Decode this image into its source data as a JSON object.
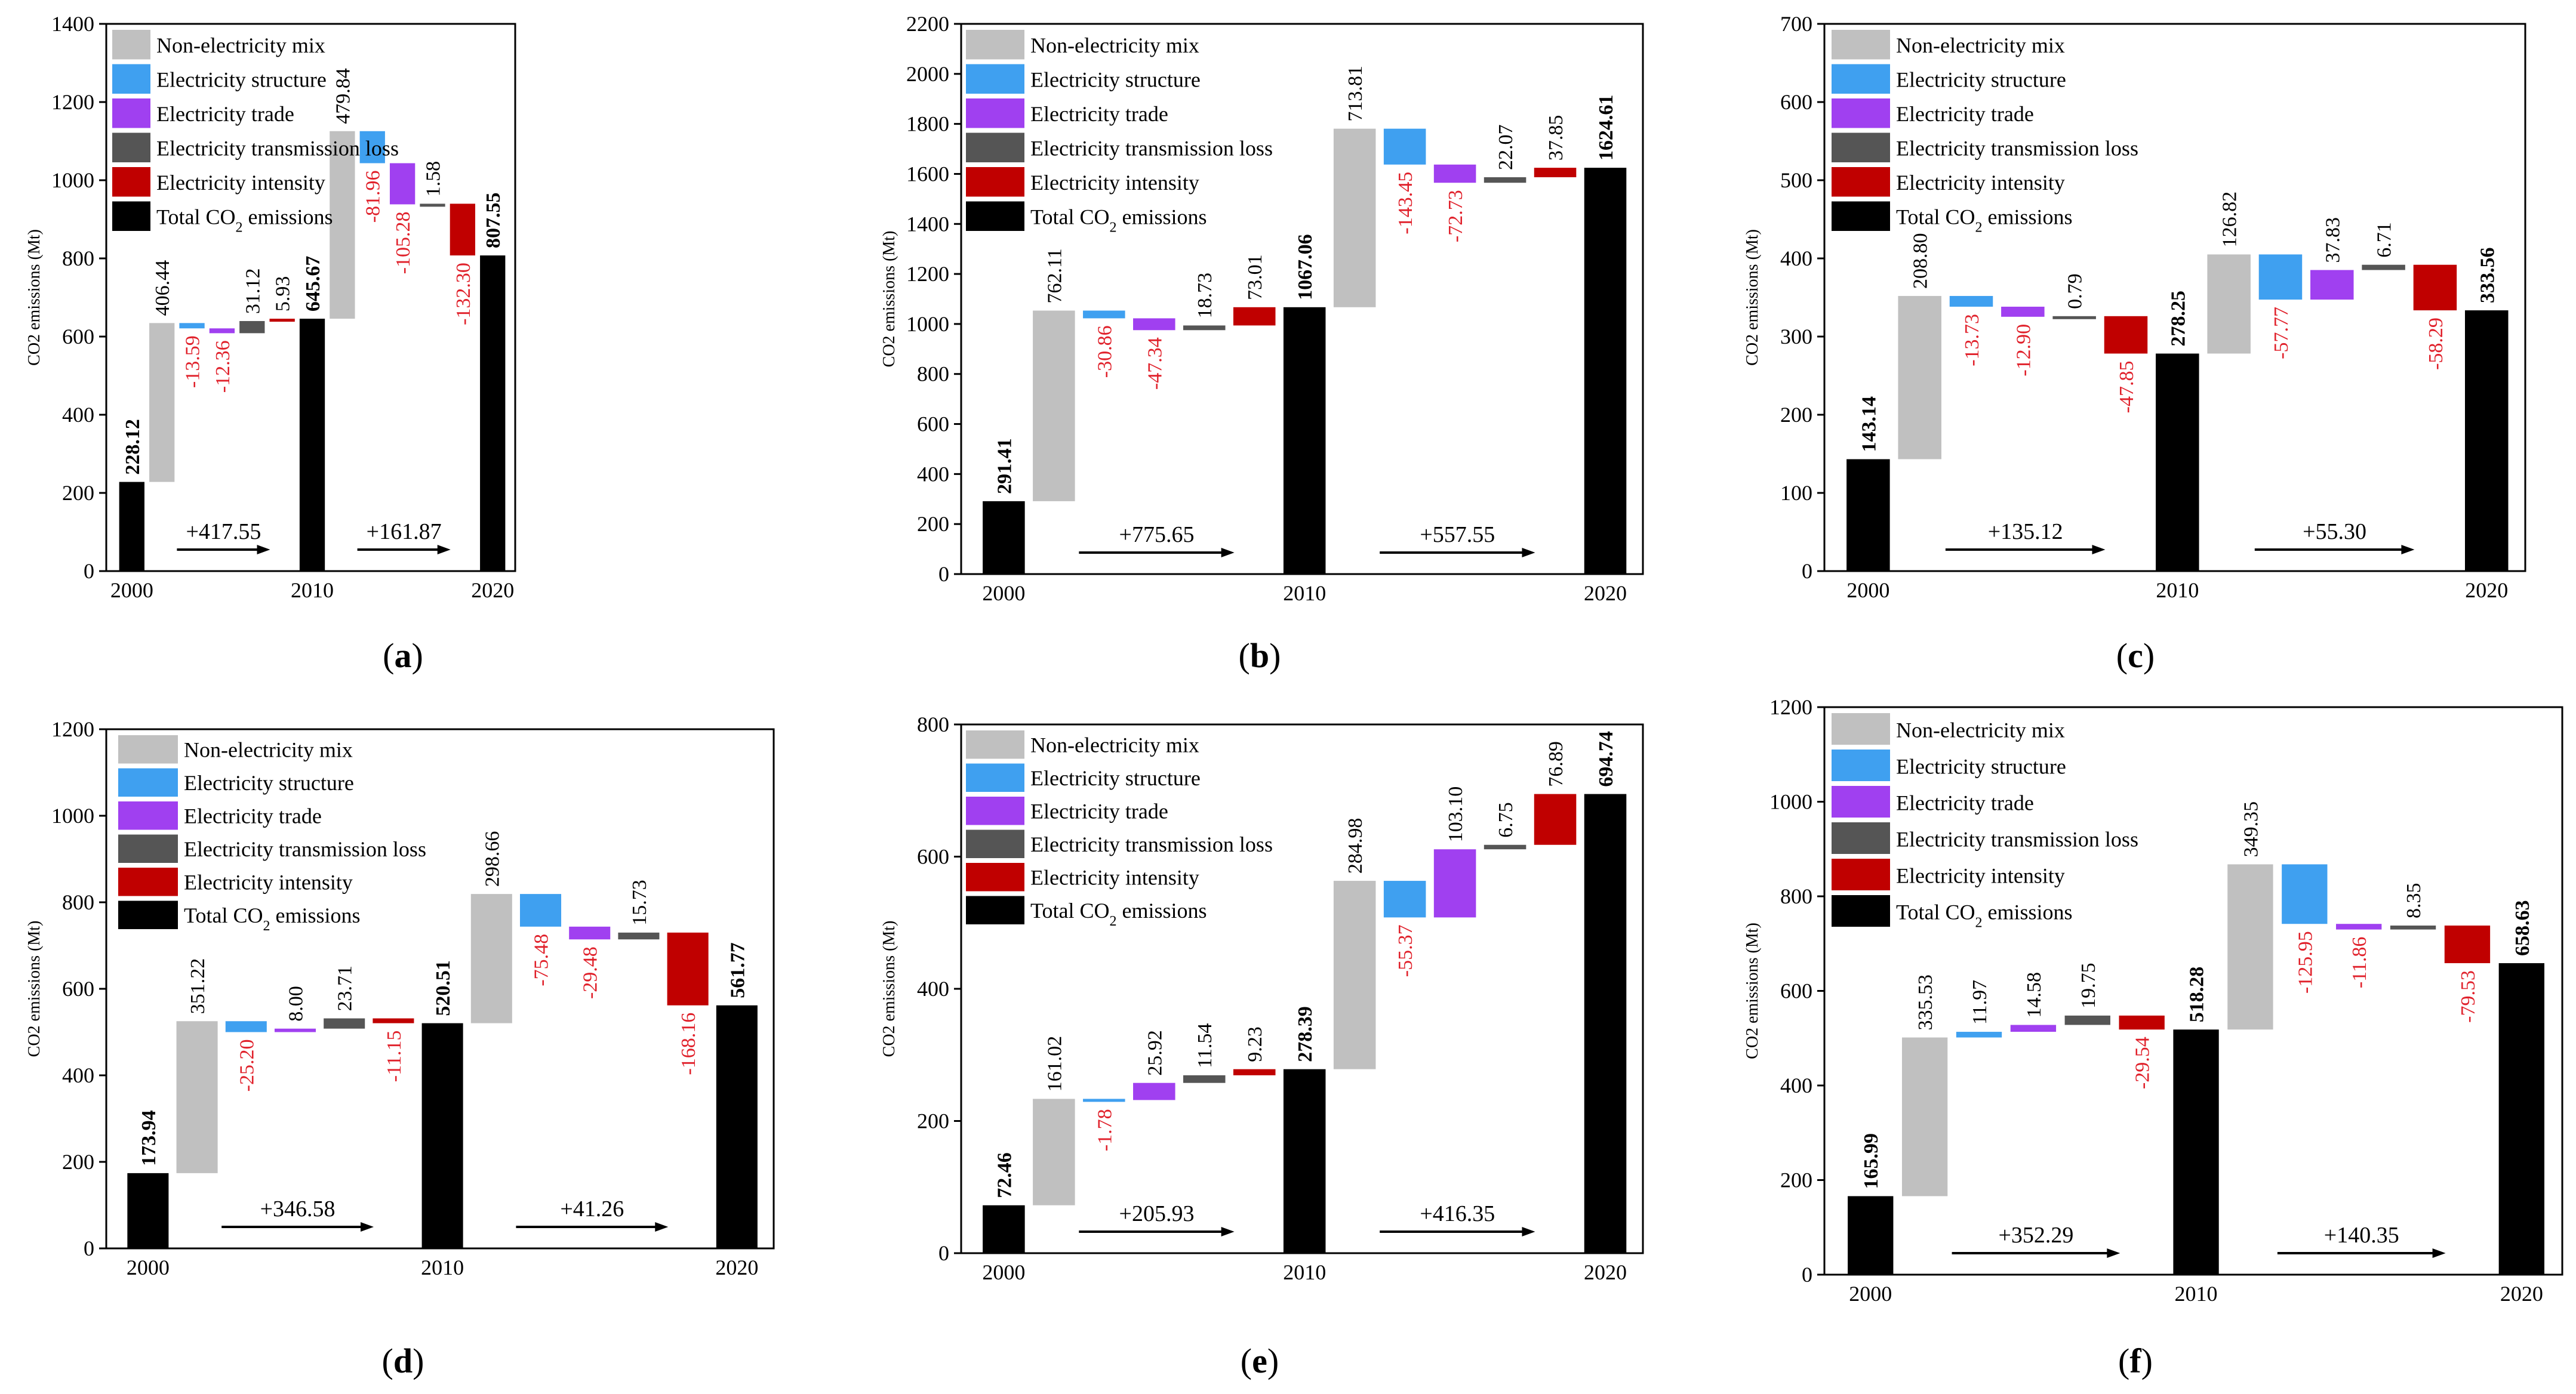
{
  "figure": {
    "legend_labels": [
      "Non-electricity mix",
      "Electricity structure",
      "Electricity trade",
      "Electricity transmission loss",
      "Electricity intensity",
      "Total CO2 emissions"
    ],
    "legend_colors": [
      "#c0c0c0",
      "#3fa0f0",
      "#a040f0",
      "#555555",
      "#c00000",
      "#000000"
    ],
    "negative_label_color": "#e0202a"
  },
  "chart_data": [
    {
      "type": "bar",
      "panel_label": "(a)",
      "ylabel": "CO2 emissions (Mt)",
      "ylim": [
        0,
        1400
      ],
      "yticks": [
        0,
        200,
        400,
        600,
        800,
        1000,
        1200,
        1400
      ],
      "year_labels": [
        "2000",
        "2010",
        "2020"
      ],
      "total_labels": [
        "228.12",
        "645.67",
        "807.55"
      ],
      "period1": {
        "labels": [
          "406.44",
          "-13.59",
          "-12.36",
          "31.12",
          "5.93"
        ],
        "delta_label": "+417.55"
      },
      "period2": {
        "labels": [
          "479.84",
          "-81.96",
          "-105.28",
          "1.58",
          "-132.30"
        ],
        "delta_label": "+161.87"
      }
    },
    {
      "type": "bar",
      "panel_label": "(b)",
      "ylabel": "CO2 emissions (Mt)",
      "ylim": [
        0,
        2200
      ],
      "yticks": [
        0,
        200,
        400,
        600,
        800,
        1000,
        1200,
        1400,
        1600,
        1800,
        2000,
        2200
      ],
      "year_labels": [
        "2000",
        "2010",
        "2020"
      ],
      "total_labels": [
        "291.41",
        "1067.06",
        "1624.61"
      ],
      "period1": {
        "labels": [
          "762.11",
          "-30.86",
          "-47.34",
          "18.73",
          "73.01"
        ],
        "delta_label": "+775.65"
      },
      "period2": {
        "labels": [
          "713.81",
          "-143.45",
          "-72.73",
          "22.07",
          "37.85"
        ],
        "delta_label": "+557.55"
      }
    },
    {
      "type": "bar",
      "panel_label": "(c)",
      "ylabel": "CO2 emissions (Mt)",
      "ylim": [
        0,
        700
      ],
      "yticks": [
        0,
        100,
        200,
        300,
        400,
        500,
        600,
        700
      ],
      "year_labels": [
        "2000",
        "2010",
        "2020"
      ],
      "total_labels": [
        "143.14",
        "278.25",
        "333.56"
      ],
      "period1": {
        "labels": [
          "208.80",
          "-13.73",
          "-12.90",
          "0.79",
          "-47.85"
        ],
        "delta_label": "+135.12"
      },
      "period2": {
        "labels": [
          "126.82",
          "-57.77",
          "37.83",
          "6.71",
          "-58.29"
        ],
        "delta_label": "+55.30"
      }
    },
    {
      "type": "bar",
      "panel_label": "(d)",
      "ylabel": "CO2 emissions (Mt)",
      "ylim": [
        0,
        1200
      ],
      "yticks": [
        0,
        200,
        400,
        600,
        800,
        1000,
        1200
      ],
      "year_labels": [
        "2000",
        "2010",
        "2020"
      ],
      "total_labels": [
        "173.94",
        "520.51",
        "561.77"
      ],
      "period1": {
        "labels": [
          "351.22",
          "-25.20",
          "8.00",
          "23.71",
          "-11.15"
        ],
        "delta_label": "+346.58"
      },
      "period2": {
        "labels": [
          "298.66",
          "-75.48",
          "-29.48",
          "15.73",
          "-168.16"
        ],
        "delta_label": "+41.26"
      }
    },
    {
      "type": "bar",
      "panel_label": "(e)",
      "ylabel": "CO2 emissions (Mt)",
      "ylim": [
        0,
        800
      ],
      "yticks": [
        0,
        200,
        400,
        600,
        800
      ],
      "year_labels": [
        "2000",
        "2010",
        "2020"
      ],
      "total_labels": [
        "72.46",
        "278.39",
        "694.74"
      ],
      "period1": {
        "labels": [
          "161.02",
          "-1.78",
          "25.92",
          "11.54",
          "9.23"
        ],
        "delta_label": "+205.93"
      },
      "period2": {
        "labels": [
          "284.98",
          "-55.37",
          "103.10",
          "6.75",
          "76.89"
        ],
        "delta_label": "+416.35"
      }
    },
    {
      "type": "bar",
      "panel_label": "(f)",
      "ylabel": "CO2 emissions (Mt)",
      "ylim": [
        0,
        1200
      ],
      "yticks": [
        0,
        200,
        400,
        600,
        800,
        1000,
        1200
      ],
      "year_labels": [
        "2000",
        "2010",
        "2020"
      ],
      "total_labels": [
        "165.99",
        "518.28",
        "658.63"
      ],
      "period1": {
        "labels": [
          "335.53",
          "11.97",
          "14.58",
          "19.75",
          "-29.54"
        ],
        "delta_label": "+352.29"
      },
      "period2": {
        "labels": [
          "349.35",
          "-125.95",
          "-11.86",
          "8.35",
          "-79.53"
        ],
        "delta_label": "+140.35"
      }
    }
  ]
}
